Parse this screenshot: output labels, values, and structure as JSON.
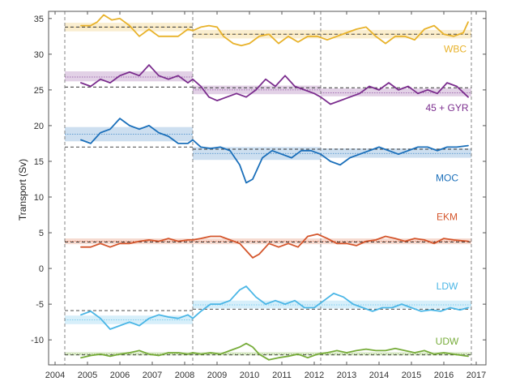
{
  "chart_data": {
    "type": "line",
    "title": "",
    "xlabel": "",
    "ylabel": "Transport (Sv)",
    "xlim": [
      2003.8,
      2017.3
    ],
    "ylim": [
      -13.5,
      36
    ],
    "xticks": [
      2004,
      2005,
      2006,
      2007,
      2008,
      2009,
      2010,
      2011,
      2012,
      2013,
      2014,
      2015,
      2016,
      2017
    ],
    "yticks": [
      35,
      30,
      25,
      20,
      15,
      10,
      5,
      0,
      -5,
      -10
    ],
    "change_points": [
      2004.3,
      2008.25,
      2012.2,
      2016.85
    ],
    "series": [
      {
        "name": "WBC",
        "color": "#e8b22a",
        "label_at": [
          2016.35,
          30.6
        ],
        "x": [
          2004.8,
          2005.1,
          2005.3,
          2005.5,
          2005.75,
          2006.0,
          2006.3,
          2006.6,
          2006.9,
          2007.2,
          2007.5,
          2007.8,
          2008.1,
          2008.25,
          2008.5,
          2008.75,
          2009.0,
          2009.2,
          2009.5,
          2009.75,
          2010.0,
          2010.3,
          2010.6,
          2010.9,
          2011.2,
          2011.5,
          2011.8,
          2012.1,
          2012.4,
          2012.7,
          2013.0,
          2013.3,
          2013.6,
          2013.9,
          2014.2,
          2014.5,
          2014.8,
          2015.1,
          2015.4,
          2015.7,
          2016.0,
          2016.3,
          2016.6,
          2016.75
        ],
        "y": [
          34,
          34,
          34.5,
          35.5,
          34.8,
          35,
          34,
          32.5,
          33.5,
          32.5,
          32.5,
          32.5,
          33.5,
          33.3,
          33.8,
          34,
          33.8,
          32.5,
          31.5,
          31.2,
          31.5,
          32.5,
          32.8,
          31.5,
          32.5,
          31.7,
          32.5,
          32.5,
          32,
          32.5,
          33,
          33.5,
          33.8,
          32.5,
          31.5,
          32.5,
          32.5,
          32,
          33.5,
          34,
          32.8,
          32.5,
          33,
          34.5
        ],
        "bands": [
          {
            "x0": 2004.3,
            "x1": 2008.25,
            "lo": 33.2,
            "hi": 34.4,
            "mean": 33.8
          },
          {
            "x0": 2008.25,
            "x1": 2016.85,
            "lo": 32.2,
            "hi": 33.4,
            "mean": 32.8
          }
        ],
        "dashed_means": [
          {
            "x0": 2004.3,
            "x1": 2008.25,
            "y": 33.8
          },
          {
            "x0": 2008.25,
            "x1": 2016.85,
            "y": 32.8
          }
        ]
      },
      {
        "name": "45 + GYR",
        "color": "#7b2d8e",
        "label_at": [
          2016.1,
          22.4
        ],
        "x": [
          2004.8,
          2005.1,
          2005.4,
          2005.7,
          2006.0,
          2006.3,
          2006.6,
          2006.9,
          2007.2,
          2007.5,
          2007.8,
          2008.1,
          2008.25,
          2008.5,
          2008.75,
          2009.0,
          2009.3,
          2009.6,
          2009.9,
          2010.2,
          2010.5,
          2010.8,
          2011.1,
          2011.4,
          2011.7,
          2012.0,
          2012.2,
          2012.5,
          2012.8,
          2013.1,
          2013.4,
          2013.7,
          2014.0,
          2014.3,
          2014.6,
          2014.9,
          2015.2,
          2015.5,
          2015.8,
          2016.1,
          2016.4,
          2016.75
        ],
        "y": [
          26,
          25.5,
          26.5,
          26,
          27,
          27.5,
          27,
          28.5,
          27,
          26.5,
          27,
          26,
          26.5,
          25.5,
          24,
          23.5,
          24,
          24.5,
          24,
          25,
          26.5,
          25.5,
          27,
          25.5,
          25,
          24.5,
          24,
          23,
          23.5,
          24,
          24.5,
          25.5,
          25,
          26,
          25,
          25.5,
          24.5,
          25,
          24.5,
          26,
          25.5,
          24
        ],
        "bands": [
          {
            "x0": 2004.3,
            "x1": 2008.25,
            "lo": 26.2,
            "hi": 27.6,
            "mean": 26.8
          },
          {
            "x0": 2008.25,
            "x1": 2012.2,
            "lo": 24.4,
            "hi": 25.6,
            "mean": 25
          },
          {
            "x0": 2012.2,
            "x1": 2016.85,
            "lo": 24.1,
            "hi": 25.2,
            "mean": 24.6
          }
        ],
        "dashed_means": [
          {
            "x0": 2004.3,
            "x1": 2008.25,
            "y": 25.4
          },
          {
            "x0": 2008.25,
            "x1": 2016.85,
            "y": 25.3
          }
        ]
      },
      {
        "name": "MOC",
        "color": "#1a6fba",
        "label_at": [
          2016.1,
          12.6
        ],
        "x": [
          2004.8,
          2005.1,
          2005.4,
          2005.7,
          2006.0,
          2006.3,
          2006.6,
          2006.9,
          2007.2,
          2007.5,
          2007.8,
          2008.1,
          2008.25,
          2008.5,
          2008.8,
          2009.1,
          2009.4,
          2009.7,
          2009.9,
          2010.1,
          2010.4,
          2010.7,
          2011.0,
          2011.3,
          2011.6,
          2011.9,
          2012.2,
          2012.5,
          2012.8,
          2013.1,
          2013.4,
          2013.7,
          2014.0,
          2014.3,
          2014.6,
          2014.9,
          2015.2,
          2015.5,
          2015.8,
          2016.1,
          2016.4,
          2016.75
        ],
        "y": [
          18,
          17.5,
          19,
          19.5,
          21,
          20,
          19.5,
          20,
          19,
          18.5,
          17.5,
          17.5,
          18,
          17,
          16.8,
          17,
          16.5,
          14.5,
          12,
          12.5,
          15.5,
          16.5,
          16,
          15.5,
          16.5,
          16.5,
          16,
          15,
          14.5,
          15.5,
          16,
          16.5,
          17,
          16.5,
          16,
          16.5,
          17,
          17,
          16.5,
          17,
          17,
          17.2
        ],
        "bands": [
          {
            "x0": 2004.3,
            "x1": 2008.25,
            "lo": 17.8,
            "hi": 19.8,
            "mean": 18.8
          },
          {
            "x0": 2008.25,
            "x1": 2012.2,
            "lo": 15.2,
            "hi": 17,
            "mean": 16.1
          },
          {
            "x0": 2012.2,
            "x1": 2016.85,
            "lo": 15.5,
            "hi": 16.8,
            "mean": 16.1
          }
        ],
        "dashed_means": [
          {
            "x0": 2004.3,
            "x1": 2008.25,
            "y": 17
          },
          {
            "x0": 2008.25,
            "x1": 2016.85,
            "y": 16.7
          }
        ]
      },
      {
        "name": "EKM",
        "color": "#d4552b",
        "label_at": [
          2016.1,
          7.1
        ],
        "x": [
          2004.8,
          2005.1,
          2005.4,
          2005.7,
          2006.0,
          2006.3,
          2006.6,
          2006.9,
          2007.2,
          2007.5,
          2007.8,
          2008.1,
          2008.25,
          2008.5,
          2008.8,
          2009.1,
          2009.4,
          2009.7,
          2009.9,
          2010.1,
          2010.3,
          2010.6,
          2010.9,
          2011.2,
          2011.5,
          2011.8,
          2012.1,
          2012.4,
          2012.7,
          2013.0,
          2013.3,
          2013.6,
          2013.9,
          2014.2,
          2014.5,
          2014.8,
          2015.1,
          2015.4,
          2015.7,
          2016.0,
          2016.3,
          2016.75
        ],
        "y": [
          3,
          3,
          3.5,
          3,
          3.5,
          3.5,
          3.8,
          4,
          3.8,
          4.2,
          3.8,
          4,
          4,
          4.2,
          4.5,
          4.5,
          4,
          3.5,
          2.5,
          1.5,
          2,
          3.5,
          3,
          3.5,
          3,
          4.5,
          4.8,
          4.2,
          3.5,
          3.5,
          3.2,
          3.8,
          4,
          4.5,
          4.2,
          3.8,
          4.2,
          4,
          3.5,
          4.2,
          4,
          3.8
        ],
        "bands": [
          {
            "x0": 2004.3,
            "x1": 2016.85,
            "lo": 3.4,
            "hi": 4.2,
            "mean": 3.8
          }
        ],
        "dashed_means": [
          {
            "x0": 2004.3,
            "x1": 2016.85,
            "y": 3.7
          }
        ]
      },
      {
        "name": "LDW",
        "color": "#4ab6e6",
        "label_at": [
          2016.1,
          -2.6
        ],
        "x": [
          2004.8,
          2005.1,
          2005.4,
          2005.7,
          2006.0,
          2006.3,
          2006.6,
          2006.9,
          2007.2,
          2007.5,
          2007.8,
          2008.1,
          2008.25,
          2008.5,
          2008.8,
          2009.1,
          2009.4,
          2009.7,
          2009.9,
          2010.2,
          2010.5,
          2010.8,
          2011.1,
          2011.4,
          2011.7,
          2012.0,
          2012.3,
          2012.6,
          2012.9,
          2013.2,
          2013.5,
          2013.8,
          2014.1,
          2014.4,
          2014.7,
          2015.0,
          2015.3,
          2015.6,
          2015.9,
          2016.2,
          2016.5,
          2016.75
        ],
        "y": [
          -6.5,
          -6,
          -7,
          -8.5,
          -8,
          -7.5,
          -8,
          -7,
          -6.5,
          -6.8,
          -7,
          -6.5,
          -7,
          -6,
          -5,
          -5,
          -4.5,
          -3,
          -2.5,
          -4,
          -5,
          -4.5,
          -5,
          -4.5,
          -5.5,
          -5.5,
          -4.5,
          -3.5,
          -4,
          -5,
          -5.5,
          -6,
          -5.5,
          -5.5,
          -5,
          -5.5,
          -6,
          -5.8,
          -6,
          -5.5,
          -5.8,
          -5.5
        ],
        "bands": [
          {
            "x0": 2004.3,
            "x1": 2008.25,
            "lo": -7.8,
            "hi": -6.6,
            "mean": -7.2
          },
          {
            "x0": 2008.25,
            "x1": 2016.85,
            "lo": -5.6,
            "hi": -4.5,
            "mean": -5.1
          }
        ],
        "dashed_means": [
          {
            "x0": 2004.3,
            "x1": 2008.25,
            "y": -5.9
          },
          {
            "x0": 2008.25,
            "x1": 2016.85,
            "y": -5.7
          }
        ]
      },
      {
        "name": "UDW",
        "color": "#77ac3a",
        "label_at": [
          2016.1,
          -10.3
        ],
        "x": [
          2004.8,
          2005.1,
          2005.4,
          2005.7,
          2006.0,
          2006.3,
          2006.6,
          2006.9,
          2007.2,
          2007.5,
          2007.8,
          2008.1,
          2008.25,
          2008.5,
          2008.8,
          2009.1,
          2009.4,
          2009.7,
          2009.9,
          2010.1,
          2010.3,
          2010.6,
          2010.9,
          2011.2,
          2011.5,
          2011.8,
          2012.1,
          2012.4,
          2012.7,
          2013.0,
          2013.3,
          2013.6,
          2013.9,
          2014.2,
          2014.5,
          2014.8,
          2015.1,
          2015.4,
          2015.7,
          2016.0,
          2016.3,
          2016.75
        ],
        "y": [
          -12.5,
          -12.2,
          -12,
          -12.3,
          -12,
          -11.8,
          -11.5,
          -12,
          -12.2,
          -11.8,
          -11.8,
          -12,
          -11.8,
          -12,
          -11.8,
          -12,
          -11.5,
          -11,
          -10.5,
          -11,
          -12,
          -12.8,
          -12.5,
          -12.3,
          -12,
          -12.5,
          -12,
          -11.8,
          -11.5,
          -11.8,
          -11.5,
          -11.3,
          -11.5,
          -11.5,
          -11.2,
          -11.5,
          -11.8,
          -11.5,
          -12,
          -11.8,
          -12,
          -12.3
        ],
        "bands": [
          {
            "x0": 2004.3,
            "x1": 2016.85,
            "lo": -12.2,
            "hi": -11.7,
            "mean": -11.95
          }
        ],
        "dashed_means": [
          {
            "x0": 2004.3,
            "x1": 2016.85,
            "y": -12.1
          }
        ]
      }
    ]
  }
}
